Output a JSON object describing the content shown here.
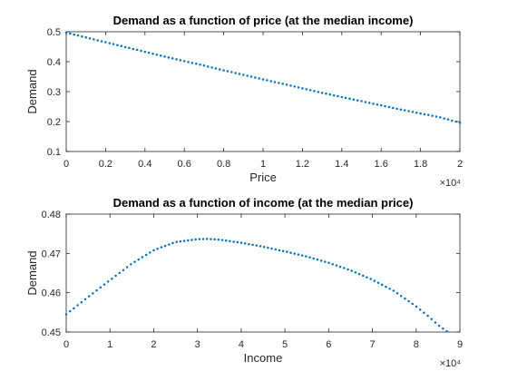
{
  "chart_data": [
    {
      "type": "scatter",
      "title": "Demand as a function of price (at the median income)",
      "xlabel": "Price",
      "ylabel": "Demand",
      "x_exponent_label": "×10⁴",
      "xlim": [
        0,
        20000
      ],
      "ylim": [
        0.1,
        0.5
      ],
      "xtick_labels": [
        "0",
        "0.2",
        "0.4",
        "0.6",
        "0.8",
        "1",
        "1.2",
        "1.4",
        "1.6",
        "1.8",
        "2"
      ],
      "ytick_labels": [
        "0.1",
        "0.2",
        "0.3",
        "0.4",
        "0.5"
      ],
      "grid": false,
      "color": "#0072BD",
      "series": [
        {
          "x": [
            0,
            1000,
            2000,
            3000,
            4000,
            5000,
            6000,
            7000,
            8000,
            9000,
            10000,
            11000,
            12000,
            13000,
            14000,
            15000,
            16000,
            17000,
            18000,
            19000,
            20000
          ],
          "y": [
            0.497,
            0.481,
            0.465,
            0.449,
            0.433,
            0.417,
            0.402,
            0.387,
            0.371,
            0.356,
            0.341,
            0.326,
            0.311,
            0.296,
            0.282,
            0.268,
            0.254,
            0.24,
            0.227,
            0.214,
            0.196
          ]
        }
      ]
    },
    {
      "type": "scatter",
      "title": "Demand as a function of income (at the median price)",
      "xlabel": "Income",
      "ylabel": "Demand",
      "x_exponent_label": "×10⁴",
      "xlim": [
        0,
        90000
      ],
      "ylim": [
        0.45,
        0.48
      ],
      "xtick_labels": [
        "0",
        "1",
        "2",
        "3",
        "4",
        "5",
        "6",
        "7",
        "8",
        "9"
      ],
      "ytick_labels": [
        "0.45",
        "0.46",
        "0.47",
        "0.48"
      ],
      "grid": false,
      "color": "#0072BD",
      "series": [
        {
          "x": [
            0,
            5000,
            10000,
            15000,
            20000,
            25000,
            30000,
            32000,
            35000,
            40000,
            45000,
            50000,
            55000,
            60000,
            65000,
            70000,
            75000,
            80000,
            83000,
            85000,
            87000
          ],
          "y": [
            0.4545,
            0.4589,
            0.4632,
            0.4674,
            0.4708,
            0.4729,
            0.4736,
            0.4737,
            0.4735,
            0.4727,
            0.4717,
            0.4705,
            0.4692,
            0.4676,
            0.4657,
            0.4633,
            0.4604,
            0.4565,
            0.4538,
            0.4518,
            0.4502
          ]
        }
      ]
    }
  ]
}
